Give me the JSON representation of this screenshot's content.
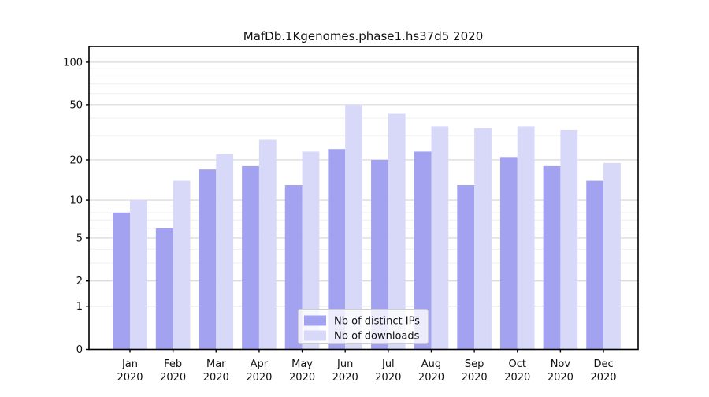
{
  "chart_data": {
    "type": "bar",
    "title": "MafDb.1Kgenomes.phase1.hs37d5 2020",
    "xlabel": "",
    "ylabel": "",
    "yscale": "log1p",
    "ylim": [
      0,
      131
    ],
    "grid": true,
    "legend_position": "lower center",
    "categories": [
      "Jan 2020",
      "Feb 2020",
      "Mar 2020",
      "Apr 2020",
      "May 2020",
      "Jun 2020",
      "Jul 2020",
      "Aug 2020",
      "Sep 2020",
      "Oct 2020",
      "Nov 2020",
      "Dec 2020"
    ],
    "x_tick_months": [
      "Jan",
      "Feb",
      "Mar",
      "Apr",
      "May",
      "Jun",
      "Jul",
      "Aug",
      "Sep",
      "Oct",
      "Nov",
      "Dec"
    ],
    "x_tick_year": "2020",
    "yticks": [
      {
        "label": "100",
        "value": 100
      },
      {
        "label": "50",
        "value": 50
      },
      {
        "label": "20",
        "value": 20
      },
      {
        "label": "10",
        "value": 10
      },
      {
        "label": "5",
        "value": 5
      },
      {
        "label": "2",
        "value": 2
      },
      {
        "label": "1",
        "value": 1
      },
      {
        "label": "0",
        "value": 0
      }
    ],
    "minor_grid_values": [
      3,
      4,
      6,
      7,
      8,
      9,
      30,
      40,
      60,
      70,
      80,
      90
    ],
    "series": [
      {
        "name": "Nb of distinct IPs",
        "color": "#a2a2f0",
        "values": [
          8,
          6,
          17,
          18,
          13,
          24,
          20,
          23,
          13,
          21,
          18,
          14
        ]
      },
      {
        "name": "Nb of downloads",
        "color": "#d8d8f9",
        "values": [
          10,
          14,
          22,
          28,
          23,
          50,
          43,
          35,
          34,
          35,
          33,
          19
        ]
      }
    ]
  },
  "legend": {
    "items": [
      {
        "label": "Nb of distinct IPs",
        "color": "#a2a2f0"
      },
      {
        "label": "Nb of downloads",
        "color": "#d8d8f9"
      }
    ]
  },
  "colors": {
    "background": "#ffffff",
    "spine": "#000000",
    "grid_major": "#d4d4d4",
    "grid_minor": "#efefef",
    "text": "#111111",
    "legend_border": "#cccccc",
    "legend_bg": "rgba(255,255,255,0.8)"
  }
}
